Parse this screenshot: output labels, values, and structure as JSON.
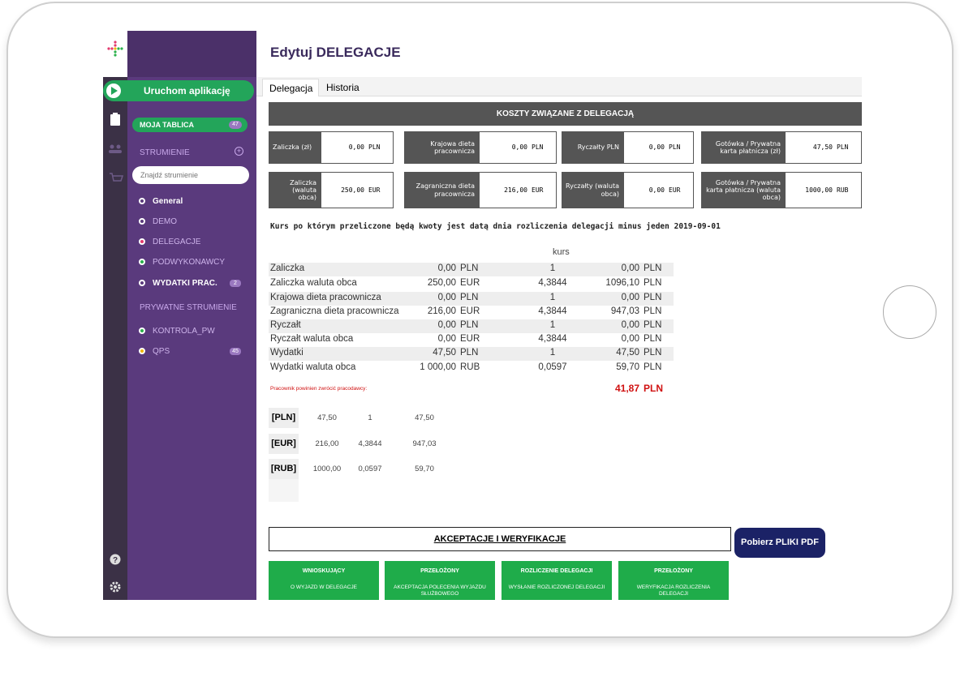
{
  "header": {
    "title": "Edytuj DELEGACJE"
  },
  "tabs": [
    "Delegacja",
    "Historia"
  ],
  "sidebar": {
    "launch": "Uruchom aplikację",
    "my_board": {
      "label": "MOJA TABLICA",
      "badge": "47"
    },
    "streams_heading": "STRUMIENIE",
    "search_placeholder": "Znajdź strumienie",
    "streams": [
      {
        "label": "General"
      },
      {
        "label": "DEMO"
      },
      {
        "label": "DELEGACJE"
      },
      {
        "label": "PODWYKONAWCY"
      },
      {
        "label": "WYDATKI PRAC.",
        "badge": "2"
      }
    ],
    "private_heading": "PRYWATNE STRUMIENIE",
    "private_streams": [
      {
        "label": "KONTROLA_PW"
      },
      {
        "label": "QPS",
        "badge": "45"
      }
    ]
  },
  "costs": {
    "title": "KOSZTY ZWIĄZANE Z DELEGACJĄ",
    "rows": [
      [
        {
          "label": "Zaliczka (zł)",
          "value": "0,00",
          "unit": "PLN"
        },
        {
          "label": "Krajowa dieta pracownicza",
          "value": "0,00",
          "unit": "PLN"
        },
        {
          "label": "Ryczałty PLN",
          "value": "0,00",
          "unit": "PLN"
        },
        {
          "label": "Gotówka / Prywatna karta płatnicza (zł)",
          "value": "47,50",
          "unit": "PLN"
        }
      ],
      [
        {
          "label": "Zaliczka (waluta obca)",
          "value": "250,00",
          "unit": "EUR"
        },
        {
          "label": "Zagraniczna dieta pracownicza",
          "value": "216,00",
          "unit": "EUR"
        },
        {
          "label": "Ryczałty (waluta obca)",
          "value": "0,00",
          "unit": "EUR"
        },
        {
          "label": "Gotówka / Prywatna karta płatnicza (waluta obca)",
          "value": "1000,00",
          "unit": "RUB"
        }
      ]
    ]
  },
  "note": "Kurs po którym przeliczone będą kwoty jest datą dnia rozliczenia delegacji minus jeden 2019-09-01",
  "calc": {
    "rate_header": "kurs",
    "rows": [
      [
        "Zaliczka",
        "0,00",
        "PLN",
        "1",
        "0,00",
        "PLN"
      ],
      [
        "Zaliczka waluta obca",
        "250,00",
        "EUR",
        "4,3844",
        "1096,10",
        "PLN"
      ],
      [
        "Krajowa dieta pracownicza",
        "0,00",
        "PLN",
        "1",
        "0,00",
        "PLN"
      ],
      [
        "Zagraniczna dieta pracownicza",
        "216,00",
        "EUR",
        "4,3844",
        "947,03",
        "PLN"
      ],
      [
        "Ryczałt",
        "0,00",
        "PLN",
        "1",
        "0,00",
        "PLN"
      ],
      [
        "Ryczałt waluta obca",
        "0,00",
        "EUR",
        "4,3844",
        "0,00",
        "PLN"
      ],
      [
        "Wydatki",
        "47,50",
        "PLN",
        "1",
        "47,50",
        "PLN"
      ],
      [
        "Wydatki waluta obca",
        "1 000,00",
        "RUB",
        "0,0597",
        "59,70",
        "PLN"
      ]
    ],
    "return_label": "Pracownik powinien zwrócić pracodawcy:",
    "return_value": "41,87",
    "return_unit": "PLN"
  },
  "summary": [
    [
      "[PLN]",
      "47,50",
      "1",
      "47,50"
    ],
    [
      "[EUR]",
      "216,00",
      "4,3844",
      "947,03"
    ],
    [
      "[RUB]",
      "1000,00",
      "0,0597",
      "59,70"
    ]
  ],
  "approvals": {
    "title": "AKCEPTACJE I WERYFIKACJE",
    "pdf_button": "Pobierz PLIKI PDF",
    "cards": [
      {
        "title": "WNIOSKUJĄCY",
        "text": "O WYJAZD W DELEGACJE"
      },
      {
        "title": "PRZEŁOŻONY",
        "text": "AKCEPTACJA POLECENIA WYJAZDU SŁUŻBOWEGO"
      },
      {
        "title": "ROZLICZENIE DELEGACJI",
        "text": "WYSŁANIE ROZLICZONEJ DELEGACJI"
      },
      {
        "title": "PRZEŁOŻONY",
        "text": "WERYFIKACJA ROZLICZENIA DELEGACJI"
      }
    ]
  }
}
